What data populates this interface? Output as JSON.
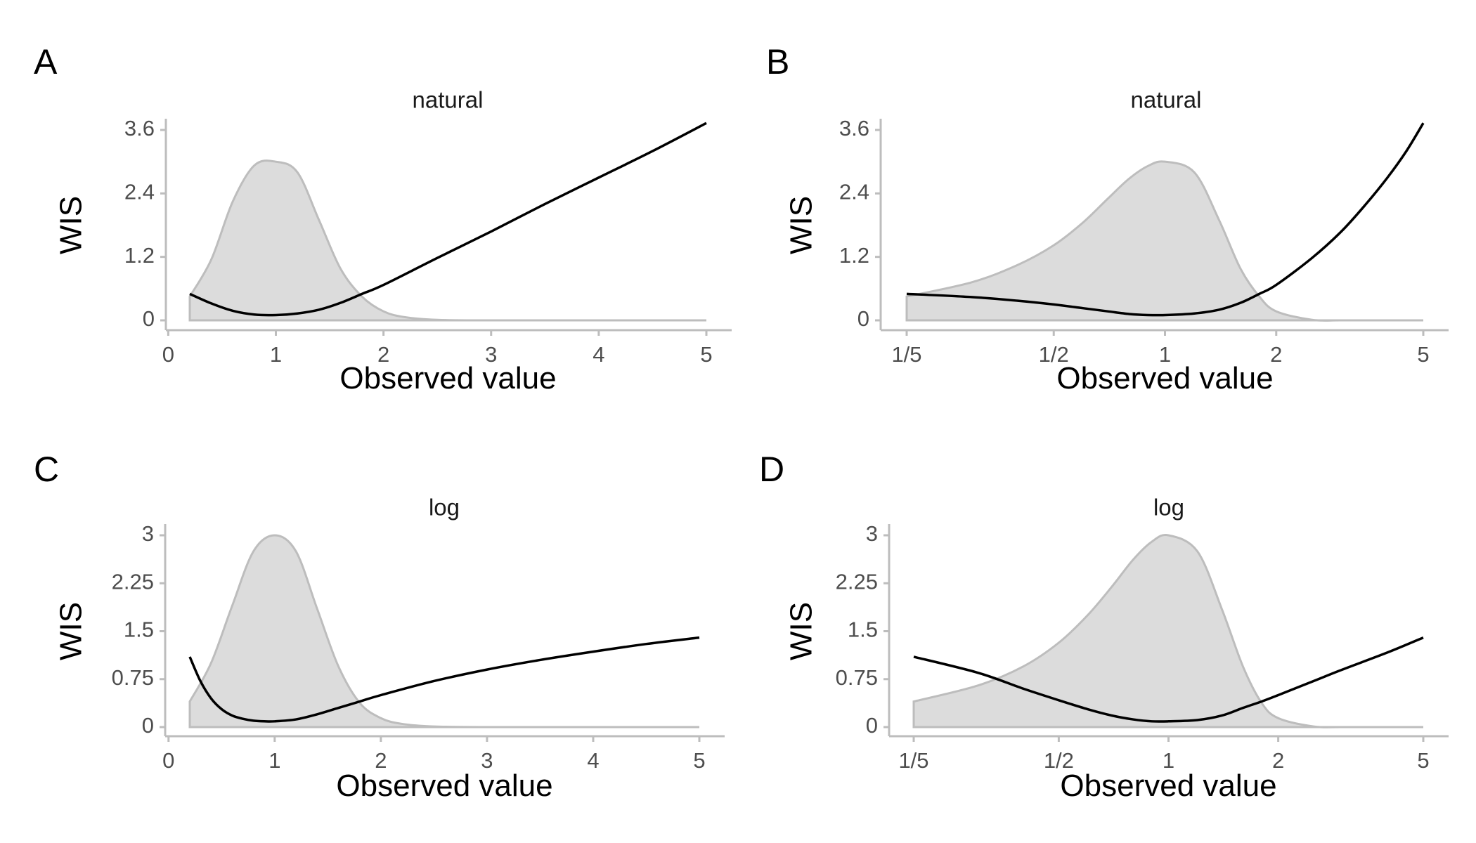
{
  "figure": {
    "width": 2100,
    "height": 1200
  },
  "colors": {
    "density_fill": "#dcdcdc",
    "density_stroke": "#bdbdbd",
    "wis_line": "#000000",
    "axis": "#bdbdbd"
  },
  "chart_data": [
    {
      "panel": "A",
      "title": "natural",
      "type": "line",
      "xlabel": "Observed value",
      "ylabel": "WIS",
      "x_scale": "linear",
      "xlim": [
        0.2,
        5
      ],
      "ylim": [
        0,
        3.6
      ],
      "x_ticks": [
        0,
        1,
        2,
        3,
        4,
        5
      ],
      "x_tick_labels": [
        "0",
        "1",
        "2",
        "3",
        "4",
        "5"
      ],
      "y_ticks": [
        0,
        1.2,
        2.4,
        3.6
      ],
      "y_tick_labels": [
        "0",
        "1.2",
        "2.4",
        "3.6"
      ],
      "grid": false,
      "series": [
        {
          "kind": "density",
          "x": [
            0.2,
            0.4,
            0.6,
            0.8,
            1.0,
            1.2,
            1.4,
            1.6,
            1.8,
            2.0,
            2.2,
            2.5,
            3.0,
            4.0,
            5.0
          ],
          "y": [
            0.45,
            1.15,
            2.25,
            2.93,
            3.0,
            2.8,
            1.9,
            0.98,
            0.45,
            0.17,
            0.06,
            0.01,
            0.0,
            0.0,
            0.0
          ]
        },
        {
          "kind": "wis",
          "x": [
            0.2,
            0.4,
            0.6,
            0.8,
            1.0,
            1.2,
            1.4,
            1.6,
            1.8,
            2.0,
            2.5,
            3.0,
            3.5,
            4.0,
            4.5,
            5.0
          ],
          "y": [
            0.5,
            0.32,
            0.18,
            0.11,
            0.1,
            0.13,
            0.2,
            0.33,
            0.5,
            0.67,
            1.18,
            1.68,
            2.2,
            2.7,
            3.2,
            3.73
          ]
        }
      ]
    },
    {
      "panel": "B",
      "title": "natural",
      "type": "line",
      "xlabel": "Observed value",
      "ylabel": "WIS",
      "x_scale": "log",
      "xlim": [
        0.2,
        5
      ],
      "ylim": [
        0,
        3.6
      ],
      "x_ticks": [
        0.2,
        0.5,
        1,
        2,
        5
      ],
      "x_tick_labels": [
        "1/5",
        "1/2",
        "1",
        "2",
        "5"
      ],
      "y_ticks": [
        0,
        1.2,
        2.4,
        3.6
      ],
      "y_tick_labels": [
        "0",
        "1.2",
        "2.4",
        "3.6"
      ],
      "grid": false,
      "series": [
        {
          "kind": "density",
          "x": [
            0.2,
            0.3,
            0.4,
            0.5,
            0.6,
            0.7,
            0.8,
            0.9,
            1.0,
            1.2,
            1.4,
            1.6,
            1.8,
            2.0,
            2.5,
            3.0,
            4.0,
            5.0
          ],
          "y": [
            0.45,
            0.72,
            1.05,
            1.42,
            1.85,
            2.3,
            2.68,
            2.92,
            3.0,
            2.8,
            1.9,
            0.98,
            0.45,
            0.17,
            0.01,
            0.0,
            0.0,
            0.0
          ]
        },
        {
          "kind": "wis",
          "x": [
            0.2,
            0.3,
            0.4,
            0.5,
            0.6,
            0.7,
            0.8,
            0.9,
            1.0,
            1.2,
            1.4,
            1.6,
            1.8,
            2.0,
            2.5,
            3.0,
            3.5,
            4.0,
            4.5,
            5.0
          ],
          "y": [
            0.5,
            0.44,
            0.37,
            0.3,
            0.23,
            0.17,
            0.12,
            0.1,
            0.1,
            0.13,
            0.2,
            0.33,
            0.5,
            0.67,
            1.18,
            1.68,
            2.2,
            2.7,
            3.2,
            3.73
          ]
        }
      ]
    },
    {
      "panel": "C",
      "title": "log",
      "type": "line",
      "xlabel": "Observed value",
      "ylabel": "WIS",
      "x_scale": "linear",
      "xlim": [
        0.2,
        5
      ],
      "ylim": [
        0,
        3
      ],
      "x_ticks": [
        0,
        1,
        2,
        3,
        4,
        5
      ],
      "x_tick_labels": [
        "0",
        "1",
        "2",
        "3",
        "4",
        "5"
      ],
      "y_ticks": [
        0,
        0.75,
        1.5,
        2.25,
        3
      ],
      "y_tick_labels": [
        "0",
        "0.75",
        "1.5",
        "2.25",
        "3"
      ],
      "grid": false,
      "series": [
        {
          "kind": "density",
          "x": [
            0.2,
            0.4,
            0.6,
            0.8,
            1.0,
            1.2,
            1.4,
            1.6,
            1.8,
            2.0,
            2.2,
            2.5,
            3.0,
            4.0,
            5.0
          ],
          "y": [
            0.4,
            1.0,
            1.9,
            2.75,
            3.0,
            2.75,
            1.85,
            0.95,
            0.38,
            0.14,
            0.05,
            0.01,
            0.0,
            0.0,
            0.0
          ]
        },
        {
          "kind": "wis",
          "x": [
            0.2,
            0.3,
            0.4,
            0.5,
            0.6,
            0.7,
            0.8,
            0.9,
            1.0,
            1.2,
            1.4,
            1.6,
            1.8,
            2.0,
            2.5,
            3.0,
            3.5,
            4.0,
            4.5,
            5.0
          ],
          "y": [
            1.1,
            0.72,
            0.45,
            0.28,
            0.18,
            0.13,
            0.1,
            0.09,
            0.09,
            0.12,
            0.2,
            0.3,
            0.4,
            0.5,
            0.72,
            0.9,
            1.05,
            1.18,
            1.3,
            1.4
          ]
        }
      ]
    },
    {
      "panel": "D",
      "title": "log",
      "type": "line",
      "xlabel": "Observed value",
      "ylabel": "WIS",
      "x_scale": "log",
      "xlim": [
        0.2,
        5
      ],
      "ylim": [
        0,
        3
      ],
      "x_ticks": [
        0.2,
        0.5,
        1,
        2,
        5
      ],
      "x_tick_labels": [
        "1/5",
        "1/2",
        "1",
        "2",
        "5"
      ],
      "y_ticks": [
        0,
        0.75,
        1.5,
        2.25,
        3
      ],
      "y_tick_labels": [
        "0",
        "0.75",
        "1.5",
        "2.25",
        "3"
      ],
      "grid": false,
      "series": [
        {
          "kind": "density",
          "x": [
            0.2,
            0.3,
            0.4,
            0.5,
            0.6,
            0.7,
            0.8,
            0.9,
            1.0,
            1.2,
            1.4,
            1.6,
            1.8,
            2.0,
            2.5,
            3.0,
            4.0,
            5.0
          ],
          "y": [
            0.4,
            0.65,
            0.95,
            1.32,
            1.75,
            2.2,
            2.62,
            2.9,
            3.0,
            2.75,
            1.85,
            0.95,
            0.38,
            0.14,
            0.01,
            0.0,
            0.0,
            0.0
          ]
        },
        {
          "kind": "wis",
          "x": [
            0.2,
            0.3,
            0.4,
            0.5,
            0.6,
            0.7,
            0.8,
            0.9,
            1.0,
            1.2,
            1.4,
            1.6,
            1.8,
            2.0,
            2.5,
            3.0,
            4.0,
            5.0
          ],
          "y": [
            1.1,
            0.85,
            0.6,
            0.42,
            0.28,
            0.18,
            0.12,
            0.09,
            0.09,
            0.11,
            0.18,
            0.3,
            0.4,
            0.5,
            0.72,
            0.9,
            1.17,
            1.4
          ]
        }
      ]
    }
  ]
}
